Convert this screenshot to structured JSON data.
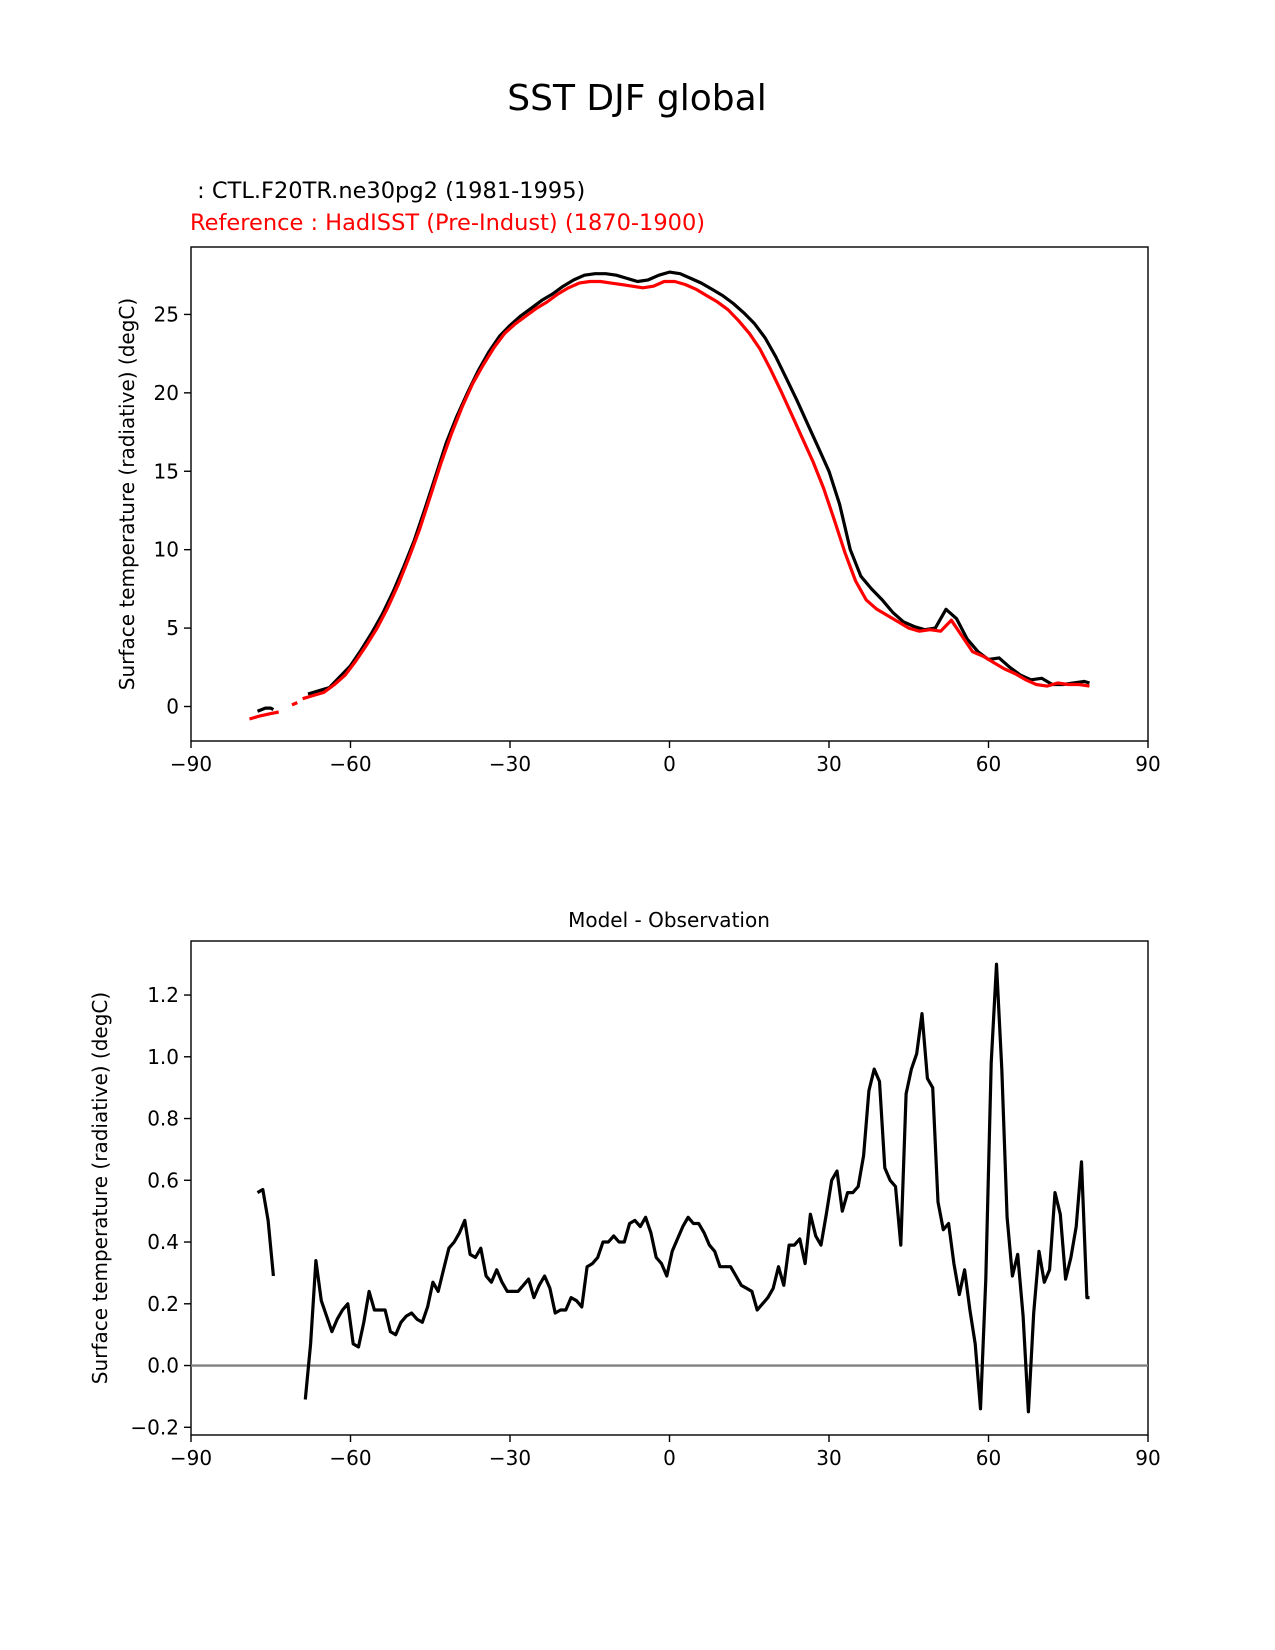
{
  "figure": {
    "title": "SST DJF global",
    "test_label": " : CTL.F20TR.ne30pg2 (1981-1995)",
    "ref_label": "Reference : HadISST (Pre-Indust) (1870-1900)"
  },
  "colors": {
    "test": "#000000",
    "reference": "#ff0000",
    "zero_line": "#808080"
  },
  "chart_data": [
    {
      "type": "line",
      "title": "",
      "xlabel": "",
      "ylabel": "Surface temperature (radiative) (degC)",
      "xlim": [
        -90,
        90
      ],
      "ylim": [
        -2.2,
        29.3
      ],
      "xticks": [
        -90,
        -60,
        -30,
        0,
        30,
        60,
        90
      ],
      "xtick_labels": [
        "−90",
        "−60",
        "−30",
        "0",
        "30",
        "60",
        "90"
      ],
      "yticks": [
        0,
        5,
        10,
        15,
        20,
        25
      ],
      "ytick_labels": [
        "0",
        "5",
        "10",
        "15",
        "20",
        "25"
      ],
      "series": [
        {
          "name": "CTL.F20TR.ne30pg2 (1981-1995)",
          "color": "#000000",
          "segments": [
            {
              "x": [
                -77.5,
                -76,
                -75,
                -74.5
              ],
              "y": [
                -0.3,
                -0.1,
                -0.1,
                -0.2
              ]
            },
            {
              "x": [
                -68,
                -66,
                -64,
                -62,
                -60,
                -58,
                -56,
                -54,
                -52,
                -50,
                -48,
                -46,
                -44,
                -42,
                -40,
                -38,
                -36,
                -34,
                -32,
                -30,
                -28,
                -26,
                -24,
                -22,
                -20,
                -18,
                -16,
                -14,
                -12,
                -10,
                -8,
                -6,
                -4,
                -2,
                0,
                2,
                4,
                6,
                8,
                10,
                12,
                14,
                16,
                18,
                20,
                22,
                24,
                26,
                28,
                30,
                32,
                34,
                36,
                38,
                40,
                42,
                44,
                46,
                48,
                50,
                52,
                54,
                56,
                58,
                60,
                62,
                64,
                66,
                68,
                70,
                72,
                74,
                76,
                78,
                79
              ],
              "y": [
                0.8,
                1.0,
                1.2,
                1.9,
                2.6,
                3.6,
                4.7,
                5.9,
                7.3,
                8.9,
                10.6,
                12.6,
                14.7,
                16.8,
                18.5,
                20.0,
                21.4,
                22.6,
                23.6,
                24.3,
                24.9,
                25.4,
                25.9,
                26.3,
                26.8,
                27.2,
                27.5,
                27.6,
                27.6,
                27.5,
                27.3,
                27.1,
                27.2,
                27.5,
                27.7,
                27.6,
                27.3,
                27.0,
                26.6,
                26.2,
                25.7,
                25.1,
                24.4,
                23.5,
                22.3,
                20.9,
                19.5,
                18.0,
                16.5,
                15.0,
                12.9,
                10.0,
                8.3,
                7.5,
                6.8,
                6.0,
                5.4,
                5.1,
                4.9,
                5.0,
                6.2,
                5.6,
                4.3,
                3.5,
                3.0,
                3.1,
                2.5,
                2.0,
                1.7,
                1.8,
                1.4,
                1.4,
                1.5,
                1.6,
                1.5
              ]
            }
          ]
        },
        {
          "name": "HadISST (Pre-Indust) (1870-1900)",
          "color": "#ff0000",
          "segments": [
            {
              "x": [
                -79,
                -77,
                -75,
                -73.5
              ],
              "y": [
                -0.8,
                -0.6,
                -0.45,
                -0.35
              ]
            },
            {
              "x": [
                -71,
                -70
              ],
              "y": [
                0.1,
                0.25
              ]
            },
            {
              "x": [
                -69,
                -67,
                -65,
                -63,
                -61,
                -59,
                -57,
                -55,
                -53,
                -51,
                -49,
                -47,
                -45,
                -43,
                -41,
                -39,
                -37,
                -35,
                -33,
                -31,
                -29,
                -27,
                -25,
                -23,
                -21,
                -19,
                -17,
                -15,
                -13,
                -11,
                -9,
                -7,
                -5,
                -3,
                -1,
                1,
                3,
                5,
                7,
                9,
                11,
                13,
                15,
                17,
                19,
                21,
                23,
                25,
                27,
                29,
                31,
                33,
                35,
                37,
                39,
                41,
                43,
                45,
                47,
                49,
                51,
                53,
                55,
                57,
                59,
                61,
                63,
                65,
                67,
                69,
                71,
                73,
                75,
                77,
                79
              ],
              "y": [
                0.5,
                0.7,
                0.9,
                1.4,
                2.0,
                2.9,
                3.9,
                5.0,
                6.3,
                7.8,
                9.5,
                11.3,
                13.4,
                15.5,
                17.4,
                19.1,
                20.6,
                21.8,
                22.9,
                23.8,
                24.4,
                24.9,
                25.4,
                25.8,
                26.3,
                26.7,
                27.0,
                27.1,
                27.1,
                27.0,
                26.9,
                26.8,
                26.7,
                26.8,
                27.1,
                27.1,
                26.9,
                26.6,
                26.2,
                25.8,
                25.3,
                24.6,
                23.8,
                22.8,
                21.5,
                20.1,
                18.6,
                17.1,
                15.6,
                13.9,
                11.9,
                9.8,
                8.0,
                6.8,
                6.2,
                5.8,
                5.4,
                5.0,
                4.8,
                4.9,
                4.8,
                5.5,
                4.5,
                3.5,
                3.2,
                2.8,
                2.4,
                2.1,
                1.7,
                1.4,
                1.3,
                1.5,
                1.4,
                1.4,
                1.3
              ]
            }
          ]
        }
      ]
    },
    {
      "type": "line",
      "title": "Model - Observation",
      "xlabel": "",
      "ylabel": "Surface temperature (radiative) (degC)",
      "xlim": [
        -90,
        90
      ],
      "ylim": [
        -0.225,
        1.375
      ],
      "xticks": [
        -90,
        -60,
        -30,
        0,
        30,
        60,
        90
      ],
      "xtick_labels": [
        "−90",
        "−60",
        "−30",
        "0",
        "30",
        "60",
        "90"
      ],
      "yticks": [
        -0.2,
        0.0,
        0.2,
        0.4,
        0.6,
        0.8,
        1.0,
        1.2
      ],
      "ytick_labels": [
        "−0.2",
        "0.0",
        "0.2",
        "0.4",
        "0.6",
        "0.8",
        "1.0",
        "1.2"
      ],
      "hline": 0.0,
      "series": [
        {
          "name": "Model - Observation",
          "color": "#000000",
          "segments": [
            {
              "x": [
                -77.5,
                -76.5,
                -75.5,
                -74.5
              ],
              "y": [
                0.56,
                0.57,
                0.47,
                0.29
              ]
            },
            {
              "x": [
                -68.5,
                -67.5,
                -66.5,
                -65.5,
                -64.5,
                -63.5,
                -62.5,
                -61.5,
                -60.5,
                -59.5,
                -58.5,
                -57.5,
                -56.5,
                -55.5,
                -54.5,
                -53.5,
                -52.5,
                -51.5,
                -50.5,
                -49.5,
                -48.5,
                -47.5,
                -46.5,
                -45.5,
                -44.5,
                -43.5,
                -42.5,
                -41.5,
                -40.5,
                -39.5,
                -38.5,
                -37.5,
                -36.5,
                -35.5,
                -34.5,
                -33.5,
                -32.5,
                -31.5,
                -30.5,
                -29.5,
                -28.5,
                -27.5,
                -26.5,
                -25.5,
                -24.5,
                -23.5,
                -22.5,
                -21.5,
                -20.5,
                -19.5,
                -18.5,
                -17.5,
                -16.5,
                -15.5,
                -14.5,
                -13.5,
                -12.5,
                -11.5,
                -10.5,
                -9.5,
                -8.5,
                -7.5,
                -6.5,
                -5.5,
                -4.5,
                -3.5,
                -2.5,
                -1.5,
                -0.5,
                0.5,
                1.5,
                2.5,
                3.5,
                4.5,
                5.5,
                6.5,
                7.5,
                8.5,
                9.5,
                10.5,
                11.5,
                12.5,
                13.5,
                14.5,
                15.5,
                16.5,
                17.5,
                18.5,
                19.5,
                20.5,
                21.5,
                22.5,
                23.5,
                24.5,
                25.5,
                26.5,
                27.5,
                28.5,
                29.5,
                30.5,
                31.5,
                32.5,
                33.5,
                34.5,
                35.5,
                36.5,
                37.5,
                38.5,
                39.5,
                40.5,
                41.5,
                42.5,
                43.5,
                44.5,
                45.5,
                46.5,
                47.5,
                48.5,
                49.5,
                50.5,
                51.5,
                52.5,
                53.5,
                54.5,
                55.5,
                56.5,
                57.5,
                58.5,
                59.5,
                60.5,
                61.5,
                62.5,
                63.5,
                64.5,
                65.5,
                66.5,
                67.5,
                68.5,
                69.5,
                70.5,
                71.5,
                72.5,
                73.5,
                74.5,
                75.5,
                76.5,
                77.5,
                78.5,
                79.0
              ],
              "y": [
                -0.11,
                0.07,
                0.34,
                0.21,
                0.16,
                0.11,
                0.15,
                0.18,
                0.2,
                0.07,
                0.06,
                0.14,
                0.24,
                0.18,
                0.18,
                0.18,
                0.11,
                0.1,
                0.14,
                0.16,
                0.17,
                0.15,
                0.14,
                0.19,
                0.27,
                0.24,
                0.31,
                0.38,
                0.4,
                0.43,
                0.47,
                0.36,
                0.35,
                0.38,
                0.29,
                0.27,
                0.31,
                0.27,
                0.24,
                0.24,
                0.24,
                0.26,
                0.28,
                0.22,
                0.26,
                0.29,
                0.25,
                0.17,
                0.18,
                0.18,
                0.22,
                0.21,
                0.19,
                0.32,
                0.33,
                0.35,
                0.4,
                0.4,
                0.42,
                0.4,
                0.4,
                0.46,
                0.47,
                0.45,
                0.48,
                0.43,
                0.35,
                0.33,
                0.29,
                0.37,
                0.41,
                0.45,
                0.48,
                0.46,
                0.46,
                0.43,
                0.39,
                0.37,
                0.32,
                0.32,
                0.32,
                0.29,
                0.26,
                0.25,
                0.24,
                0.18,
                0.2,
                0.22,
                0.25,
                0.32,
                0.26,
                0.39,
                0.39,
                0.41,
                0.33,
                0.49,
                0.42,
                0.39,
                0.49,
                0.6,
                0.63,
                0.5,
                0.56,
                0.56,
                0.58,
                0.68,
                0.89,
                0.96,
                0.92,
                0.64,
                0.6,
                0.58,
                0.39,
                0.88,
                0.96,
                1.01,
                1.14,
                0.93,
                0.9,
                0.53,
                0.44,
                0.46,
                0.33,
                0.23,
                0.31,
                0.18,
                0.07,
                -0.14,
                0.28,
                0.98,
                1.3,
                0.96,
                0.48,
                0.29,
                0.36,
                0.16,
                -0.15,
                0.17,
                0.37,
                0.27,
                0.31,
                0.56,
                0.49,
                0.28,
                0.35,
                0.45,
                0.66,
                0.22,
                0.22
              ]
            }
          ]
        }
      ]
    }
  ]
}
